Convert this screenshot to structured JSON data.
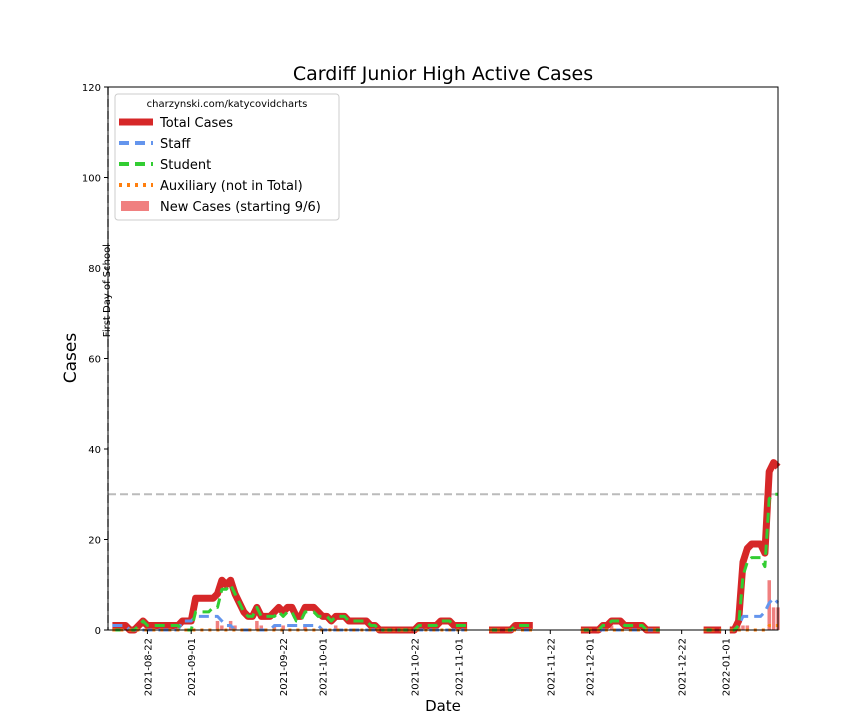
{
  "chart_data": {
    "type": "line",
    "title": "Cardiff Junior High Active Cases",
    "xlabel": "Date",
    "ylabel": "Cases",
    "ylim": [
      0,
      120
    ],
    "xlim": [
      "2021-08-13",
      "2022-01-13"
    ],
    "y_ticks": [
      0,
      20,
      40,
      60,
      80,
      100,
      120
    ],
    "x_ticks": [
      "2021-08-22",
      "2021-09-01",
      "2021-09-22",
      "2021-10-01",
      "2021-10-22",
      "2021-11-01",
      "2021-11-22",
      "2021-12-01",
      "2021-12-22",
      "2022-01-01"
    ],
    "legend": {
      "title": "charzynski.com/katycovidcharts",
      "location": "top-left",
      "entries": [
        "Total Cases",
        "Staff",
        "Student",
        "Auxiliary (not in Total)",
        "New Cases (starting 9/6)"
      ]
    },
    "annotations": {
      "vline_label": "First Day of School",
      "vline_date": "2021-08-13",
      "hline_value": 30
    },
    "grid": false,
    "colors": {
      "total": "#d62728",
      "staff": "#6495ed",
      "student": "#32cd32",
      "auxiliary": "#ff7f0e",
      "new_cases": "#f08080",
      "reference": "#bbbbbb"
    },
    "segments": [
      {
        "x": [
          "2021-08-14",
          "2021-08-15",
          "2021-08-16",
          "2021-08-17",
          "2021-08-18",
          "2021-08-19",
          "2021-08-20",
          "2021-08-21",
          "2021-08-22",
          "2021-08-23",
          "2021-08-24",
          "2021-08-25",
          "2021-08-26",
          "2021-08-27",
          "2021-08-28",
          "2021-08-29",
          "2021-08-30",
          "2021-08-31",
          "2021-09-01",
          "2021-09-02",
          "2021-09-03",
          "2021-09-04",
          "2021-09-05",
          "2021-09-06",
          "2021-09-07",
          "2021-09-08",
          "2021-09-09",
          "2021-09-10",
          "2021-09-11",
          "2021-09-12",
          "2021-09-13",
          "2021-09-14",
          "2021-09-15",
          "2021-09-16",
          "2021-09-17",
          "2021-09-18",
          "2021-09-19",
          "2021-09-20",
          "2021-09-21",
          "2021-09-22",
          "2021-09-23",
          "2021-09-24",
          "2021-09-25",
          "2021-09-26",
          "2021-09-27",
          "2021-09-28",
          "2021-09-29",
          "2021-09-30",
          "2021-10-01",
          "2021-10-02",
          "2021-10-03",
          "2021-10-04",
          "2021-10-05",
          "2021-10-06",
          "2021-10-07",
          "2021-10-08",
          "2021-10-09",
          "2021-10-10",
          "2021-10-11",
          "2021-10-12",
          "2021-10-13",
          "2021-10-14",
          "2021-10-15",
          "2021-10-16",
          "2021-10-17",
          "2021-10-18",
          "2021-10-19",
          "2021-10-20",
          "2021-10-21",
          "2021-10-22",
          "2021-10-23",
          "2021-10-24",
          "2021-10-25",
          "2021-10-26",
          "2021-10-27",
          "2021-10-28",
          "2021-10-29",
          "2021-10-30",
          "2021-10-31",
          "2021-11-01",
          "2021-11-02",
          "2021-11-03"
        ],
        "total": [
          1,
          1,
          1,
          1,
          0,
          0,
          1,
          2,
          1,
          1,
          1,
          1,
          1,
          1,
          1,
          1,
          2,
          2,
          2,
          7,
          7,
          7,
          7,
          7,
          8,
          11,
          10,
          11,
          8,
          6,
          4,
          3,
          3,
          5,
          3,
          3,
          3,
          4,
          5,
          4,
          5,
          5,
          3,
          3,
          5,
          5,
          5,
          4,
          3,
          3,
          2,
          3,
          3,
          3,
          2,
          2,
          2,
          2,
          2,
          1,
          1,
          0,
          0,
          0,
          0,
          0,
          0,
          0,
          0,
          0,
          1,
          1,
          1,
          1,
          1,
          2,
          2,
          2,
          1,
          1,
          1,
          1
        ],
        "staff": [
          1,
          1,
          1,
          1,
          0,
          0,
          0,
          0,
          0,
          0,
          0,
          0,
          0,
          0,
          0,
          0,
          2,
          2,
          2,
          3,
          3,
          3,
          3,
          3,
          3,
          2,
          1,
          1,
          0,
          0,
          0,
          0,
          0,
          0,
          0,
          0,
          0,
          1,
          1,
          1,
          1,
          1,
          1,
          1,
          1,
          1,
          1,
          1,
          0,
          0,
          0,
          0,
          0,
          0,
          0,
          0,
          0,
          0,
          0,
          0,
          0,
          0,
          0,
          0,
          0,
          0,
          0,
          0,
          0,
          0,
          0,
          0,
          0,
          0,
          0,
          0,
          0,
          0,
          0,
          0,
          0,
          0
        ],
        "student": [
          0,
          0,
          0,
          0,
          0,
          0,
          1,
          2,
          1,
          1,
          1,
          1,
          1,
          1,
          1,
          1,
          0,
          0,
          0,
          4,
          4,
          4,
          4,
          5,
          5,
          9,
          9,
          10,
          8,
          6,
          4,
          3,
          3,
          5,
          3,
          3,
          3,
          3,
          4,
          3,
          4,
          4,
          2,
          2,
          4,
          4,
          4,
          3,
          3,
          3,
          2,
          3,
          3,
          3,
          2,
          2,
          2,
          2,
          2,
          1,
          1,
          0,
          0,
          0,
          0,
          0,
          0,
          0,
          0,
          0,
          1,
          1,
          1,
          1,
          1,
          2,
          2,
          2,
          1,
          1,
          1,
          1
        ],
        "auxiliary": [
          0,
          0,
          0,
          0,
          0,
          0,
          0,
          0,
          0,
          0,
          0,
          0,
          0,
          0,
          0,
          0,
          0,
          0,
          0,
          0,
          0,
          0,
          0,
          0,
          0,
          0,
          0,
          0,
          0,
          0,
          0,
          0,
          0,
          0,
          0,
          0,
          0,
          0,
          0,
          0,
          0,
          0,
          0,
          0,
          0,
          0,
          0,
          0,
          0,
          0,
          0,
          0,
          0,
          0,
          0,
          0,
          0,
          0,
          0,
          0,
          0,
          0,
          0,
          0,
          0,
          0,
          0,
          0,
          0,
          0,
          0,
          0,
          0,
          0,
          0,
          0,
          0,
          0,
          0,
          0,
          0,
          0
        ]
      },
      {
        "x": [
          "2021-11-08",
          "2021-11-09",
          "2021-11-10",
          "2021-11-11",
          "2021-11-12",
          "2021-11-13",
          "2021-11-14",
          "2021-11-15",
          "2021-11-16",
          "2021-11-17",
          "2021-11-18"
        ],
        "total": [
          0,
          0,
          0,
          0,
          0,
          0,
          1,
          1,
          1,
          1,
          1
        ],
        "staff": [
          0,
          0,
          0,
          0,
          0,
          0,
          0,
          0,
          0,
          0,
          0
        ],
        "student": [
          0,
          0,
          0,
          0,
          0,
          0,
          1,
          1,
          1,
          1,
          1
        ],
        "auxiliary": [
          0,
          0,
          0,
          0,
          0,
          0,
          0,
          0,
          0,
          0,
          0
        ]
      },
      {
        "x": [
          "2021-11-29",
          "2021-11-30",
          "2021-12-01",
          "2021-12-02",
          "2021-12-03",
          "2021-12-04",
          "2021-12-05",
          "2021-12-06",
          "2021-12-07",
          "2021-12-08",
          "2021-12-09",
          "2021-12-10",
          "2021-12-11",
          "2021-12-12",
          "2021-12-13",
          "2021-12-14",
          "2021-12-15",
          "2021-12-16",
          "2021-12-17"
        ],
        "total": [
          0,
          0,
          0,
          0,
          0,
          1,
          1,
          2,
          2,
          2,
          1,
          1,
          1,
          1,
          1,
          0,
          0,
          0,
          0
        ],
        "staff": [
          0,
          0,
          0,
          0,
          0,
          0,
          0,
          0,
          0,
          0,
          0,
          0,
          0,
          0,
          0,
          0,
          0,
          0,
          0
        ],
        "student": [
          0,
          0,
          0,
          0,
          0,
          1,
          1,
          2,
          2,
          2,
          1,
          1,
          1,
          1,
          1,
          0,
          0,
          0,
          0
        ],
        "auxiliary": [
          0,
          0,
          0,
          0,
          0,
          0,
          0,
          0,
          0,
          0,
          0,
          0,
          0,
          0,
          0,
          0,
          0,
          0,
          0
        ]
      },
      {
        "x": [
          "2021-12-27",
          "2021-12-28",
          "2021-12-29",
          "2021-12-30",
          "2021-12-31"
        ],
        "total": [
          0,
          0,
          0,
          0,
          0
        ],
        "staff": [
          0,
          0,
          0,
          0,
          0
        ],
        "student": [
          0,
          0,
          0,
          0,
          0
        ],
        "auxiliary": [
          0,
          0,
          0,
          0,
          0
        ]
      },
      {
        "x": [
          "2022-01-02",
          "2022-01-03",
          "2022-01-04",
          "2022-01-05",
          "2022-01-06",
          "2022-01-07",
          "2022-01-08",
          "2022-01-09",
          "2022-01-10",
          "2022-01-11",
          "2022-01-12",
          "2022-01-13"
        ],
        "total": [
          0,
          0,
          2,
          15,
          18,
          19,
          19,
          19,
          17,
          35,
          37,
          36
        ],
        "staff": [
          0,
          0,
          1,
          3,
          3,
          3,
          3,
          3,
          4,
          6,
          7,
          6
        ],
        "student": [
          0,
          0,
          1,
          12,
          15,
          16,
          16,
          16,
          14,
          29,
          30,
          30
        ],
        "auxiliary": [
          0,
          0,
          0,
          0,
          0,
          0,
          0,
          0,
          0,
          1,
          1,
          1
        ]
      }
    ],
    "new_cases": {
      "x": [
        "2021-09-07",
        "2021-09-08",
        "2021-09-10",
        "2021-09-11",
        "2021-09-16",
        "2021-09-17",
        "2021-09-20",
        "2021-09-22",
        "2021-09-27",
        "2021-10-04",
        "2021-12-06",
        "2022-01-04",
        "2022-01-05",
        "2022-01-06",
        "2022-01-11",
        "2022-01-12",
        "2022-01-13"
      ],
      "values": [
        2,
        1,
        2,
        1,
        2,
        1,
        1,
        1,
        1,
        1,
        1,
        2,
        1,
        1,
        11,
        5,
        5
      ]
    }
  }
}
